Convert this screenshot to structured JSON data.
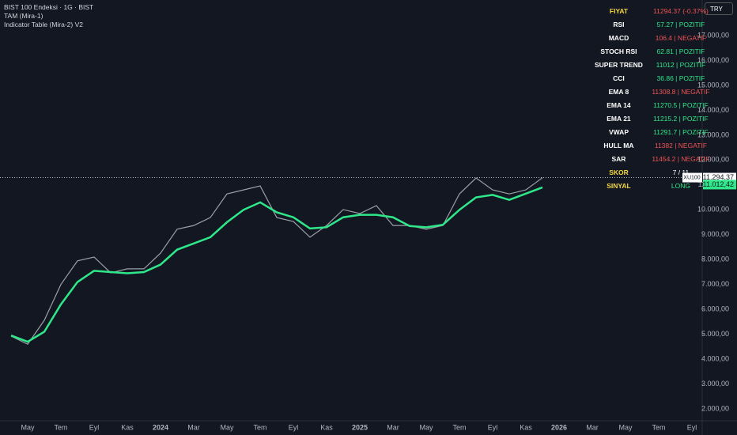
{
  "header": {
    "symbol": "BIST 100 Endeksi · 1G · BIST",
    "indicators": [
      "TAM (Mira-1)",
      "Indicator Table (Mira-2) V2"
    ],
    "currency": "TRY"
  },
  "chart_data": {
    "type": "line",
    "categories": [
      null,
      "May",
      null,
      "Tem",
      null,
      "Eyl",
      null,
      "Kas",
      null,
      "2024",
      null,
      "Mar",
      null,
      "May",
      null,
      "Tem",
      null,
      "Eyl",
      null,
      "Kas",
      null,
      "2025",
      null,
      "Mar",
      null,
      "May",
      null,
      "Tem",
      null,
      "Eyl",
      null,
      "Kas",
      null,
      "2026",
      null,
      "Mar",
      null,
      "May",
      null,
      "Tem",
      null,
      "Eyl"
    ],
    "series": [
      {
        "name": "XU100",
        "color": "#9aa0a6",
        "values": [
          4925,
          4600,
          5560,
          7000,
          7950,
          8100,
          7470,
          7630,
          7630,
          8260,
          9220,
          9370,
          9690,
          10640,
          10800,
          10960,
          9690,
          9530,
          8900,
          9370,
          10010,
          9850,
          10170,
          9370,
          9370,
          9220,
          9370,
          10640,
          11280,
          10800,
          10640,
          10800,
          11290,
          null,
          null,
          null,
          null,
          null,
          null,
          null,
          null,
          null
        ]
      },
      {
        "name": "TAM (Mira-1)",
        "color": "#2ee88a",
        "values": [
          4950,
          4700,
          5100,
          6200,
          7100,
          7550,
          7500,
          7450,
          7500,
          7800,
          8400,
          8650,
          8900,
          9500,
          10000,
          10300,
          9900,
          9700,
          9250,
          9300,
          9700,
          9800,
          9800,
          9700,
          9350,
          9300,
          9400,
          10000,
          10500,
          10600,
          10400,
          10650,
          10900,
          null,
          null,
          null,
          null,
          null,
          null,
          null,
          null,
          null
        ]
      }
    ],
    "ylim": [
      1525,
      18430
    ],
    "yticks": [
      {
        "value": 2000,
        "label": "2.000,00"
      },
      {
        "value": 3000,
        "label": "3.000,00"
      },
      {
        "value": 4000,
        "label": "4.000,00"
      },
      {
        "value": 5000,
        "label": "5.000,00"
      },
      {
        "value": 6000,
        "label": "6.000,00"
      },
      {
        "value": 7000,
        "label": "7.000,00"
      },
      {
        "value": 8000,
        "label": "8.000,00"
      },
      {
        "value": 9000,
        "label": "9.000,00"
      },
      {
        "value": 10000,
        "label": "10.000,00"
      },
      {
        "value": 11000,
        "label": "11.000,00"
      },
      {
        "value": 12000,
        "label": "12.000,00"
      },
      {
        "value": 13000,
        "label": "13.000,00"
      },
      {
        "value": 14000,
        "label": "14.000,00"
      },
      {
        "value": 15000,
        "label": "15.000,00"
      },
      {
        "value": 16000,
        "label": "16.000,00"
      },
      {
        "value": 17000,
        "label": "17.000,00"
      }
    ],
    "last_price": {
      "name": "XU100",
      "value": 11294.37,
      "label": "11.294,37"
    },
    "last_ema": {
      "value": 11012.42,
      "label": "11.012,42"
    },
    "grid": false
  },
  "indicator_table": {
    "rows": [
      {
        "label": "FIYAT",
        "value": "11294.37 (-0.37%)",
        "label_color": "#f5d742",
        "value_color": "#f05454"
      },
      {
        "label": "RSI",
        "value": "57.27 | POZITIF",
        "label_color": "#ffffff",
        "value_color": "#2ee88a"
      },
      {
        "label": "MACD",
        "value": "106.4 | NEGATIF",
        "label_color": "#ffffff",
        "value_color": "#f05454"
      },
      {
        "label": "STOCH RSI",
        "value": "62.81 | POZITIF",
        "label_color": "#ffffff",
        "value_color": "#2ee88a"
      },
      {
        "label": "SUPER TREND",
        "value": "11012 | POZITIF",
        "label_color": "#ffffff",
        "value_color": "#2ee88a"
      },
      {
        "label": "CCI",
        "value": "36.86 | POZITIF",
        "label_color": "#ffffff",
        "value_color": "#2ee88a"
      },
      {
        "label": "EMA 8",
        "value": "11308.8 | NEGATIF",
        "label_color": "#ffffff",
        "value_color": "#f05454"
      },
      {
        "label": "EMA 14",
        "value": "11270.5 | POZITIF",
        "label_color": "#ffffff",
        "value_color": "#2ee88a"
      },
      {
        "label": "EMA 21",
        "value": "11215.2 | POZITIF",
        "label_color": "#ffffff",
        "value_color": "#2ee88a"
      },
      {
        "label": "VWAP",
        "value": "11291.7 | POZITIF",
        "label_color": "#ffffff",
        "value_color": "#2ee88a"
      },
      {
        "label": "HULL MA",
        "value": "11382 | NEGATIF",
        "label_color": "#ffffff",
        "value_color": "#f05454"
      },
      {
        "label": "SAR",
        "value": "11454.2 | NEGATIF",
        "label_color": "#ffffff",
        "value_color": "#f05454"
      },
      {
        "label": "SKOR",
        "value": "7 / 11",
        "label_color": "#f5d742",
        "value_color": "#ffffff"
      },
      {
        "label": "SINYAL",
        "value": "LONG",
        "label_color": "#f5d742",
        "value_color": "#2ee88a"
      }
    ]
  }
}
